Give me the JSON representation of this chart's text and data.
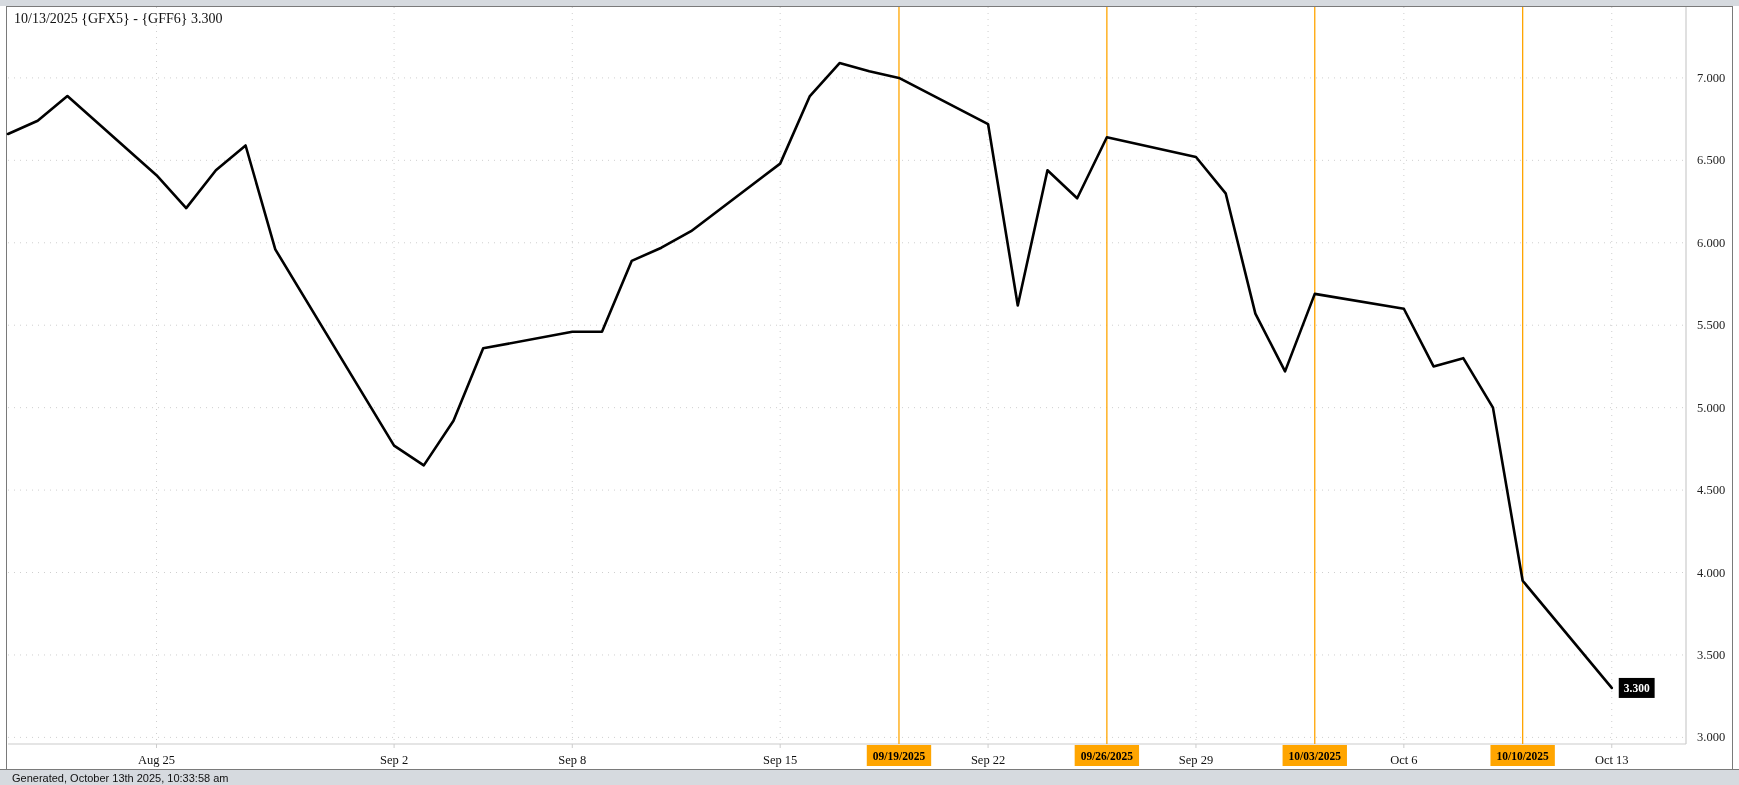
{
  "chart_data": {
    "type": "line",
    "title": "10/13/2025 {GFX5} - {GFF6} 3.300",
    "x": [
      "2025-08-20",
      "2025-08-21",
      "2025-08-22",
      "2025-08-25",
      "2025-08-26",
      "2025-08-27",
      "2025-08-28",
      "2025-08-29",
      "2025-09-02",
      "2025-09-03",
      "2025-09-04",
      "2025-09-05",
      "2025-09-08",
      "2025-09-09",
      "2025-09-10",
      "2025-09-11",
      "2025-09-12",
      "2025-09-15",
      "2025-09-16",
      "2025-09-17",
      "2025-09-18",
      "2025-09-19",
      "2025-09-22",
      "2025-09-23",
      "2025-09-24",
      "2025-09-25",
      "2025-09-26",
      "2025-09-29",
      "2025-09-30",
      "2025-10-01",
      "2025-10-02",
      "2025-10-03",
      "2025-10-06",
      "2025-10-07",
      "2025-10-08",
      "2025-10-09",
      "2025-10-10",
      "2025-10-13"
    ],
    "values": [
      6.66,
      6.74,
      6.89,
      6.41,
      6.21,
      6.44,
      6.59,
      5.96,
      4.77,
      4.65,
      4.92,
      5.36,
      5.46,
      5.46,
      5.89,
      5.97,
      6.07,
      6.48,
      6.89,
      7.09,
      7.04,
      7.0,
      6.72,
      5.62,
      6.44,
      6.27,
      6.64,
      6.52,
      6.3,
      5.57,
      5.22,
      5.69,
      5.6,
      5.25,
      5.3,
      5.0,
      3.95,
      3.3
    ],
    "color": "#000000",
    "value_labels": [
      null,
      null,
      null,
      null,
      null,
      null,
      null,
      null,
      null,
      null,
      null,
      null,
      null,
      null,
      null,
      null,
      null,
      null,
      null,
      null,
      null,
      null,
      null,
      null,
      null,
      null,
      null,
      null,
      null,
      null,
      null,
      null,
      null,
      null,
      null,
      null,
      null,
      "3.300"
    ],
    "xlim": [
      "2025-08-20",
      "2025-10-15T12:00"
    ],
    "xticks": [
      {
        "value": "2025-08-25",
        "label": "Aug 25"
      },
      {
        "value": "2025-09-02",
        "label": "Sep 2"
      },
      {
        "value": "2025-09-08",
        "label": "Sep 8"
      },
      {
        "value": "2025-09-15",
        "label": "Sep 15"
      },
      {
        "value": "2025-09-22",
        "label": "Sep 22"
      },
      {
        "value": "2025-09-29",
        "label": "Sep 29"
      },
      {
        "value": "2025-10-06",
        "label": "Oct 6"
      },
      {
        "value": "2025-10-13",
        "label": "Oct 13"
      }
    ],
    "ylim": [
      2.96,
      7.43
    ],
    "yticks": [
      {
        "value": 3,
        "label": "3.000"
      },
      {
        "value": 3.5,
        "label": "3.500"
      },
      {
        "value": 4,
        "label": "4.000"
      },
      {
        "value": 4.5,
        "label": "4.500"
      },
      {
        "value": 5,
        "label": "5.000"
      },
      {
        "value": 5.5,
        "label": "5.500"
      },
      {
        "value": 6,
        "label": "6.000"
      },
      {
        "value": 6.5,
        "label": "6.500"
      },
      {
        "value": 7,
        "label": "7.000"
      }
    ],
    "grid": true,
    "ref_lines": [
      {
        "axis": "x",
        "value": "2025-09-19",
        "label": "09/19/2025",
        "color": "#ffa500"
      },
      {
        "axis": "x",
        "value": "2025-09-26",
        "label": "09/26/2025",
        "color": "#ffa500"
      },
      {
        "axis": "x",
        "value": "2025-10-03",
        "label": "10/03/2025",
        "color": "#ffa500"
      },
      {
        "axis": "x",
        "value": "2025-10-10",
        "label": "10/10/2025",
        "color": "#ffa500"
      }
    ],
    "annotations": [
      "Generated, October 13th 2025, 10:33:58 am"
    ]
  }
}
